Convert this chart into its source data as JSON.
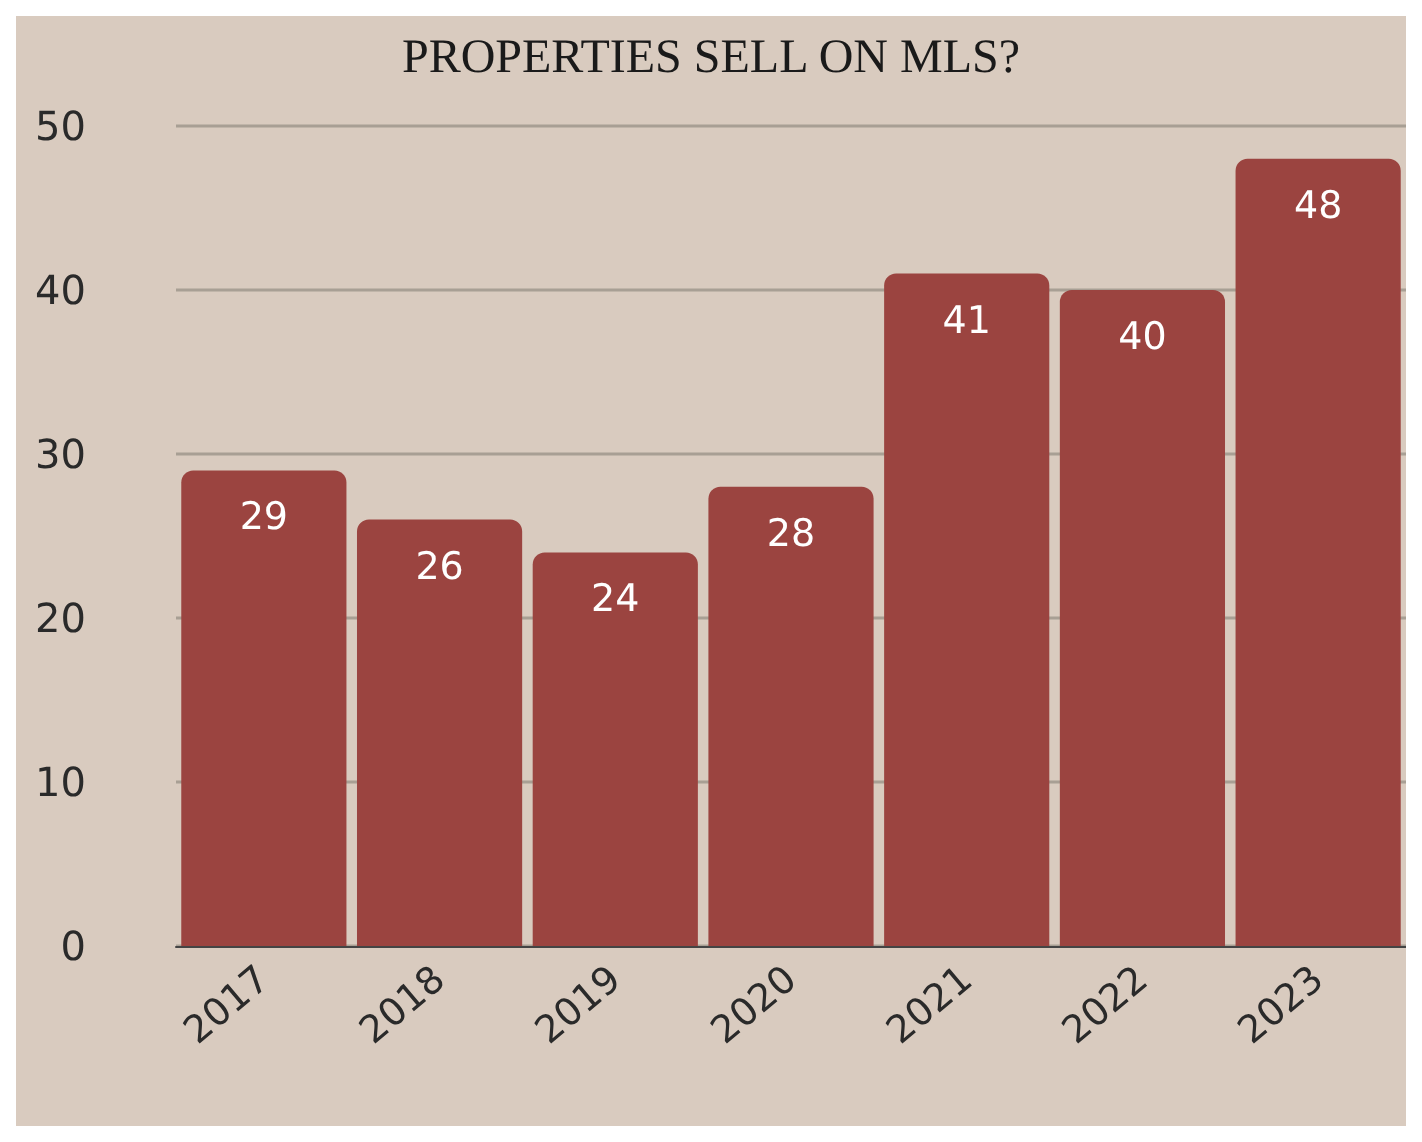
{
  "chart_data": {
    "type": "bar",
    "title": "PROPERTIES SELL ON MLS?",
    "categories": [
      "2017",
      "2018",
      "2019",
      "2020",
      "2021",
      "2022",
      "2023"
    ],
    "values": [
      29,
      26,
      24,
      28,
      41,
      40,
      48
    ],
    "color": "#9b4440",
    "ylim": [
      0,
      50
    ],
    "yticks": [
      0,
      10,
      20,
      30,
      40,
      50
    ],
    "grid": "y",
    "data_labels": true
  }
}
